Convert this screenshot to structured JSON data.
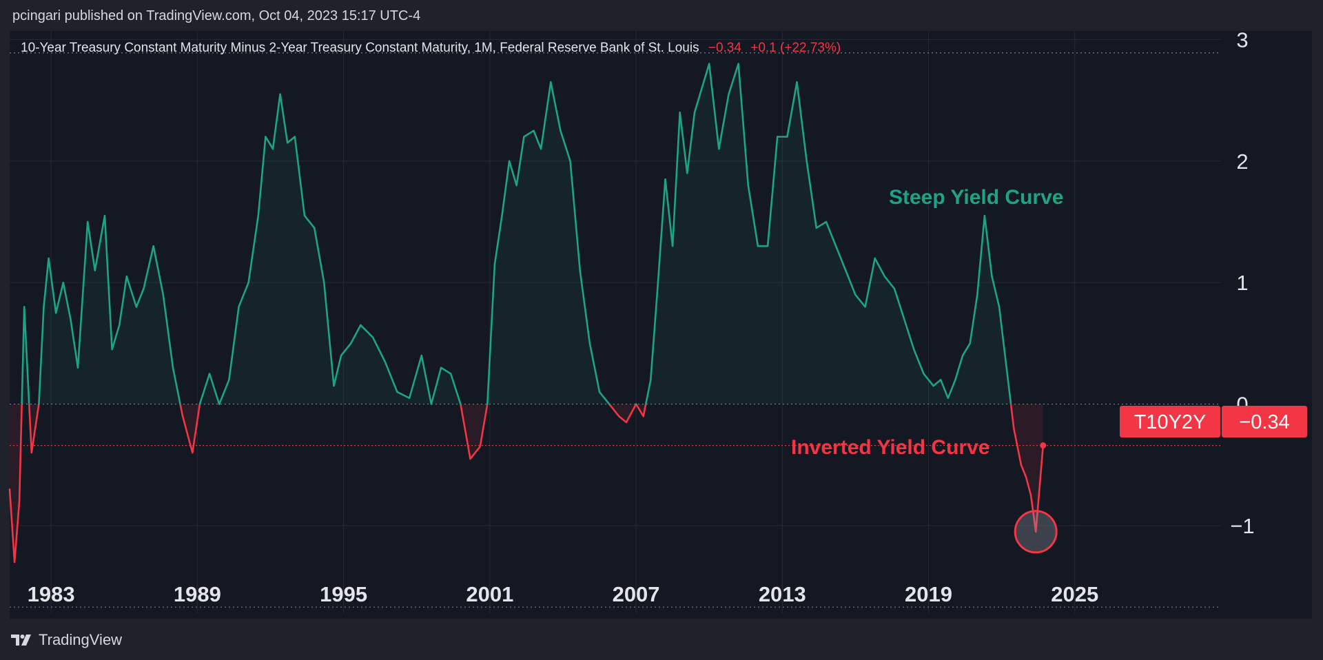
{
  "header": {
    "publisher": "pcingari published on TradingView.com, Oct 04, 2023 15:17 UTC-4"
  },
  "legend": {
    "title": "10-Year Treasury Constant Maturity Minus 2-Year Treasury Constant Maturity, 1M, Federal Reserve Bank of St. Louis",
    "value": "−0.34",
    "change": "+0.1 (+22.73%)"
  },
  "footer": {
    "logo_text": "TradingView"
  },
  "colors": {
    "positive": "#1ea386",
    "negative": "#f23645",
    "background": "#141823",
    "grid": "#262a35",
    "text": "#e3e5ea"
  },
  "chart_data": {
    "type": "line",
    "title": "10-Year Treasury Constant Maturity Minus 2-Year Treasury Constant Maturity, 1M, Federal Reserve Bank of St. Louis",
    "xlim": [
      1981.3,
      2031.0
    ],
    "ylim": [
      -1.72,
      3.07
    ],
    "xticks": [
      1983,
      1989,
      1995,
      2001,
      2007,
      2013,
      2019,
      2025
    ],
    "xtick_labels": [
      "1983",
      "1989",
      "1995",
      "2001",
      "2007",
      "2013",
      "2019",
      "2025"
    ],
    "yticks": [
      -1,
      0,
      1,
      2,
      3
    ],
    "ytick_labels": [
      "−1",
      "0",
      "1",
      "2",
      "3"
    ],
    "grid": true,
    "series": [
      {
        "name": "T10Y2Y",
        "x": [
          1981.3,
          1981.5,
          1981.7,
          1981.9,
          1982.2,
          1982.5,
          1982.7,
          1982.9,
          1983.2,
          1983.5,
          1983.8,
          1984.1,
          1984.5,
          1984.8,
          1985.2,
          1985.5,
          1985.8,
          1986.1,
          1986.5,
          1986.8,
          1987.2,
          1987.6,
          1988.0,
          1988.4,
          1988.8,
          1989.1,
          1989.5,
          1989.9,
          1990.3,
          1990.7,
          1991.1,
          1991.5,
          1991.8,
          1992.1,
          1992.4,
          1992.7,
          1993.0,
          1993.4,
          1993.8,
          1994.2,
          1994.6,
          1994.9,
          1995.3,
          1995.7,
          1996.2,
          1996.7,
          1997.2,
          1997.7,
          1998.2,
          1998.6,
          1999.0,
          1999.4,
          1999.8,
          2000.2,
          2000.6,
          2000.9,
          2001.2,
          2001.5,
          2001.8,
          2002.1,
          2002.4,
          2002.8,
          2003.1,
          2003.5,
          2003.9,
          2004.3,
          2004.7,
          2005.1,
          2005.5,
          2005.9,
          2006.3,
          2006.6,
          2007.0,
          2007.3,
          2007.6,
          2007.9,
          2008.2,
          2008.5,
          2008.8,
          2009.1,
          2009.4,
          2009.7,
          2010.0,
          2010.4,
          2010.8,
          2011.2,
          2011.6,
          2012.0,
          2012.4,
          2012.8,
          2013.2,
          2013.6,
          2014.0,
          2014.4,
          2014.8,
          2015.2,
          2015.6,
          2016.0,
          2016.4,
          2016.8,
          2017.2,
          2017.6,
          2018.0,
          2018.4,
          2018.8,
          2019.2,
          2019.5,
          2019.8,
          2020.1,
          2020.4,
          2020.7,
          2021.0,
          2021.3,
          2021.6,
          2021.9,
          2022.2,
          2022.5,
          2022.8,
          2023.0,
          2023.2,
          2023.4,
          2023.7
        ],
        "y": [
          -0.7,
          -1.3,
          -0.8,
          0.8,
          -0.4,
          0.0,
          0.8,
          1.2,
          0.75,
          1.0,
          0.7,
          0.3,
          1.5,
          1.1,
          1.55,
          0.45,
          0.65,
          1.05,
          0.8,
          0.95,
          1.3,
          0.9,
          0.3,
          -0.1,
          -0.4,
          0.0,
          0.25,
          0.0,
          0.2,
          0.8,
          1.0,
          1.55,
          2.2,
          2.1,
          2.55,
          2.15,
          2.2,
          1.55,
          1.45,
          1.0,
          0.15,
          0.4,
          0.5,
          0.65,
          0.55,
          0.35,
          0.1,
          0.05,
          0.4,
          0.0,
          0.3,
          0.25,
          0.0,
          -0.45,
          -0.35,
          0.0,
          1.15,
          1.55,
          2.0,
          1.8,
          2.2,
          2.25,
          2.1,
          2.65,
          2.25,
          2.0,
          1.1,
          0.5,
          0.1,
          0.0,
          -0.1,
          -0.15,
          0.0,
          -0.1,
          0.2,
          1.0,
          1.85,
          1.3,
          2.4,
          1.9,
          2.4,
          2.6,
          2.8,
          2.1,
          2.55,
          2.8,
          1.8,
          1.3,
          1.3,
          2.2,
          2.2,
          2.65,
          2.0,
          1.45,
          1.5,
          1.3,
          1.1,
          0.9,
          0.8,
          1.2,
          1.05,
          0.95,
          0.7,
          0.45,
          0.25,
          0.15,
          0.2,
          0.05,
          0.2,
          0.4,
          0.5,
          0.9,
          1.55,
          1.05,
          0.8,
          0.3,
          -0.2,
          -0.5,
          -0.6,
          -0.75,
          -1.05,
          -0.34
        ]
      }
    ],
    "annotations": [
      "Steep Yield Curve",
      "Inverted Yield Curve"
    ],
    "last_value": {
      "label": "T10Y2Y",
      "value": "−0.34"
    }
  }
}
